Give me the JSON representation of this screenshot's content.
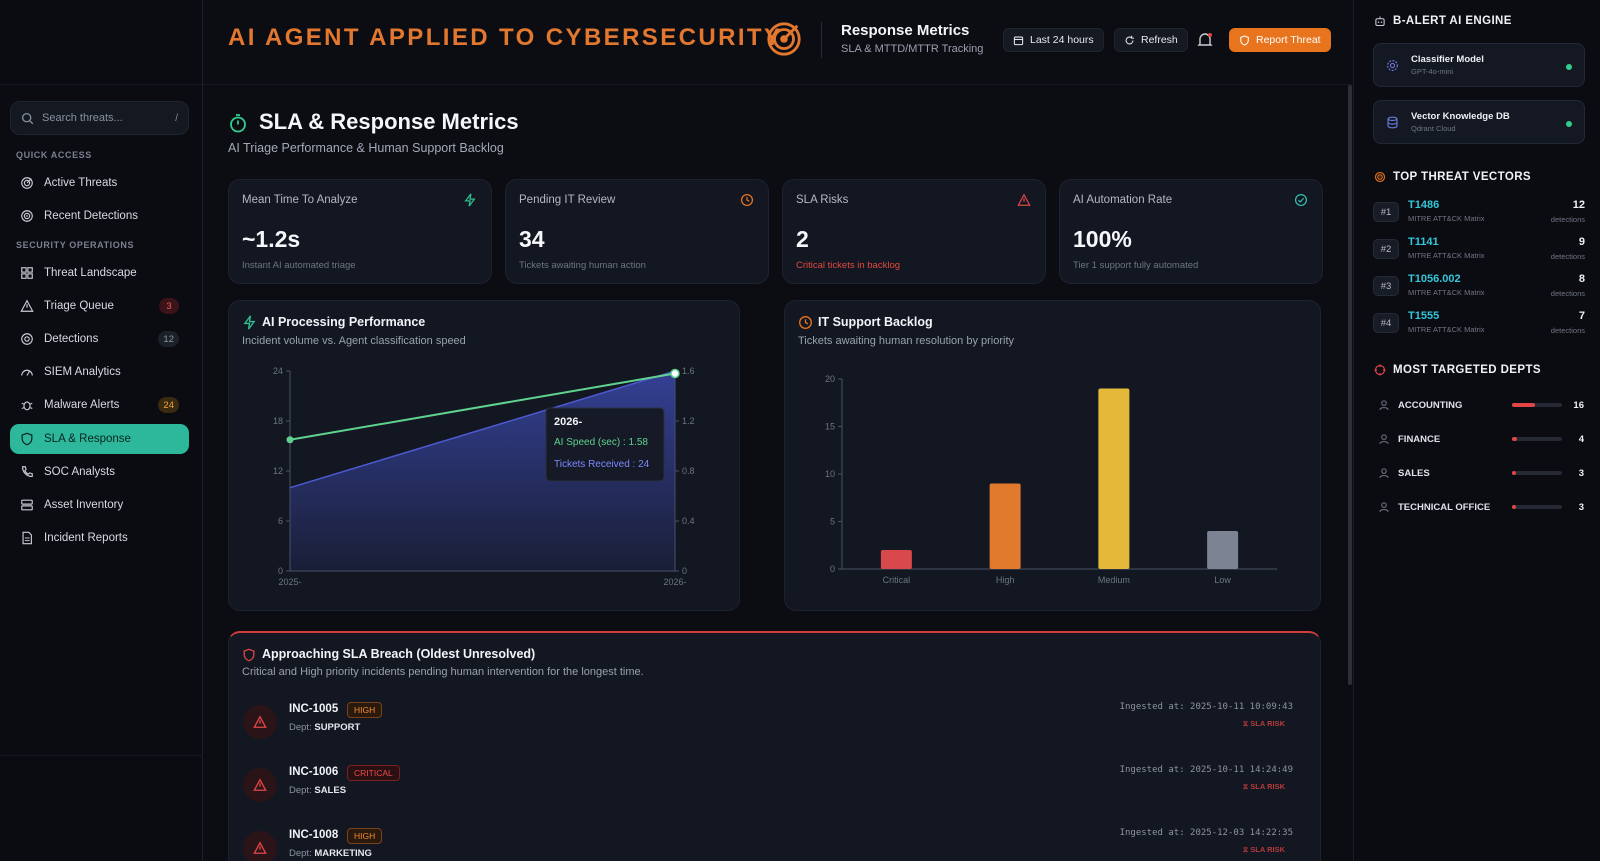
{
  "sidebar": {
    "search_placeholder": "Search threats...",
    "search_shortcut": "/",
    "sections": {
      "quick_access": "QUICK ACCESS",
      "security_operations": "SECURITY OPERATIONS"
    },
    "quick_items": [
      {
        "label": "Active Threats",
        "icon": "radar-icon"
      },
      {
        "label": "Recent Detections",
        "icon": "radar-icon"
      }
    ],
    "ops_items": [
      {
        "label": "Threat Landscape",
        "icon": "grid-icon",
        "badge": ""
      },
      {
        "label": "Triage Queue",
        "icon": "warning-icon",
        "badge": "3"
      },
      {
        "label": "Detections",
        "icon": "target-icon",
        "badge": "12"
      },
      {
        "label": "SIEM Analytics",
        "icon": "gauge-icon",
        "badge": ""
      },
      {
        "label": "Malware Alerts",
        "icon": "bug-icon",
        "badge": "24"
      },
      {
        "label": "SLA & Response",
        "icon": "shield-icon",
        "badge": ""
      },
      {
        "label": "SOC Analysts",
        "icon": "phone-icon",
        "badge": ""
      },
      {
        "label": "Asset Inventory",
        "icon": "server-icon",
        "badge": ""
      },
      {
        "label": "Incident Reports",
        "icon": "document-icon",
        "badge": ""
      }
    ]
  },
  "header": {
    "brand": "AI AGENT APPLIED TO CYBERSECURITY",
    "title": "Response Metrics",
    "subtitle": "SLA & MTTD/MTTR Tracking",
    "time_range": "Last 24 hours",
    "refresh": "Refresh",
    "report": "Report Threat"
  },
  "page": {
    "title": "SLA & Response Metrics",
    "subtitle": "AI Triage Performance & Human Support Backlog"
  },
  "kpis": [
    {
      "label": "Mean Time To Analyze",
      "value": "~1.2s",
      "sub": "Instant AI automated triage",
      "icon": "bolt-icon",
      "color": "#2fbf8f"
    },
    {
      "label": "Pending IT Review",
      "value": "34",
      "sub": "Tickets awaiting human action",
      "icon": "clock-icon",
      "color": "#e8741e"
    },
    {
      "label": "SLA Risks",
      "value": "2",
      "sub": "Critical tickets in backlog",
      "icon": "warning-icon",
      "color": "#e24545"
    },
    {
      "label": "AI Automation Rate",
      "value": "100%",
      "sub": "Tier 1 support fully automated",
      "icon": "check-circle-icon",
      "color": "#2fbfb0"
    }
  ],
  "ai_panel": {
    "title": "AI Processing Performance",
    "subtitle": "Incident volume vs. Agent classification speed",
    "tooltip": {
      "title": "2026-",
      "speed": "AI Speed (sec) : 1.58",
      "tickets": "Tickets Received : 24"
    }
  },
  "backlog_panel": {
    "title": "IT Support Backlog",
    "subtitle": "Tickets awaiting human resolution by priority"
  },
  "chart_data": [
    {
      "type": "area",
      "x": [
        "2025-",
        "2026-"
      ],
      "series": [
        {
          "name": "Tickets Received",
          "values": [
            10,
            24
          ],
          "axis": "left"
        },
        {
          "name": "AI Speed (sec)",
          "values": [
            1.05,
            1.58
          ],
          "axis": "right"
        }
      ],
      "y_left_ticks": [
        "0",
        "6",
        "12",
        "18",
        "24"
      ],
      "y_right_ticks": [
        "0",
        "0.4",
        "0.8",
        "1.2",
        "1.6"
      ],
      "ylim_left": [
        0,
        24
      ],
      "ylim_right": [
        0,
        1.6
      ],
      "colors": {
        "area": "#3a47a8",
        "line": "#5fd38e"
      }
    },
    {
      "type": "bar",
      "categories": [
        "Critical",
        "High",
        "Medium",
        "Low"
      ],
      "values": [
        2,
        9,
        19,
        4
      ],
      "y_ticks": [
        "0",
        "5",
        "10",
        "15",
        "20"
      ],
      "ylim": [
        0,
        20
      ],
      "colors": [
        "#d9484a",
        "#e07a2c",
        "#e4b93a",
        "#7c8494"
      ]
    }
  ],
  "breach": {
    "title": "Approaching SLA Breach (Oldest Unresolved)",
    "subtitle": "Critical and High priority incidents pending human intervention for the longest time.",
    "dept_prefix": "Dept:",
    "ingested_prefix": "Ingested at:",
    "incidents": [
      {
        "id": "INC-1005",
        "severity": "HIGH",
        "dept": "SUPPORT",
        "ingested": "2025-10-11 10:09:43",
        "risk": "SLA RISK"
      },
      {
        "id": "INC-1006",
        "severity": "CRITICAL",
        "dept": "SALES",
        "ingested": "2025-10-11 14:24:49",
        "risk": "SLA RISK"
      },
      {
        "id": "INC-1008",
        "severity": "HIGH",
        "dept": "MARKETING",
        "ingested": "2025-12-03 14:22:35",
        "risk": "SLA RISK"
      }
    ]
  },
  "right": {
    "engine_title": "B-ALERT AI ENGINE",
    "engines": [
      {
        "name": "Classifier Model",
        "sub": "GPT-4o-mini"
      },
      {
        "name": "Vector Knowledge DB",
        "sub": "Qdrant Cloud"
      }
    ],
    "vectors_title": "TOP THREAT VECTORS",
    "vectors": [
      {
        "rank": "#1",
        "id": "T1486",
        "src": "MITRE ATT&CK Matrix",
        "count": "12",
        "unit": "detections"
      },
      {
        "rank": "#2",
        "id": "T1141",
        "src": "MITRE ATT&CK Matrix",
        "count": "9",
        "unit": "detections"
      },
      {
        "rank": "#3",
        "id": "T1056.002",
        "src": "MITRE ATT&CK Matrix",
        "count": "8",
        "unit": "detections"
      },
      {
        "rank": "#4",
        "id": "T1555",
        "src": "MITRE ATT&CK Matrix",
        "count": "7",
        "unit": "detections"
      }
    ],
    "depts_title": "MOST TARGETED DEPTS",
    "depts": [
      {
        "name": "ACCOUNTING",
        "count": "16",
        "level": 0.45
      },
      {
        "name": "FINANCE",
        "count": "4",
        "level": 0.1
      },
      {
        "name": "SALES",
        "count": "3",
        "level": 0.06
      },
      {
        "name": "TECHNICAL OFFICE",
        "count": "3",
        "level": 0.06
      }
    ]
  }
}
